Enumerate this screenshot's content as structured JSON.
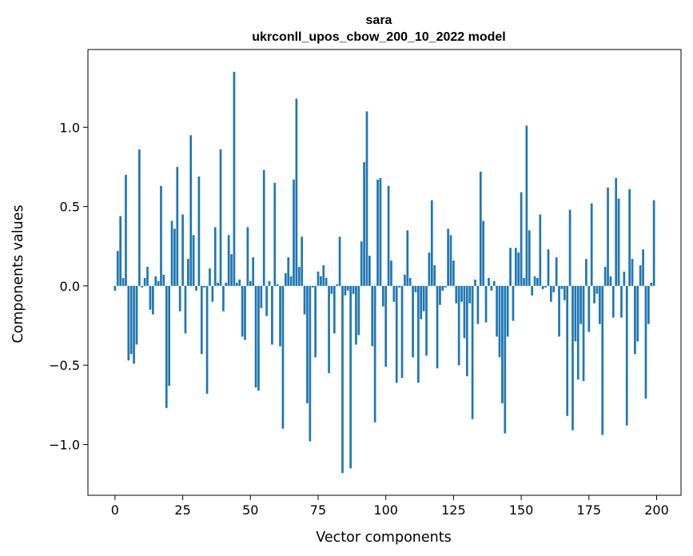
{
  "chart_data": {
    "type": "bar",
    "title": "sara",
    "subtitle": "ukrconll_upos_cbow_200_10_2022 model",
    "xlabel": "Vector components",
    "ylabel": "Components values",
    "xlim": [
      -10,
      209
    ],
    "ylim": [
      -1.32,
      1.49
    ],
    "xticks": [
      0,
      25,
      50,
      75,
      100,
      125,
      150,
      175,
      200
    ],
    "xtick_labels": [
      "0",
      "25",
      "50",
      "75",
      "100",
      "125",
      "150",
      "175",
      "200"
    ],
    "yticks": [
      -1.0,
      -0.5,
      0.0,
      0.5,
      1.0
    ],
    "ytick_labels": [
      "−1.0",
      "−0.5",
      "0.0",
      "0.5",
      "1.0"
    ],
    "grid": false,
    "bar_color": "#1f77b4",
    "x": [
      0,
      1,
      2,
      3,
      4,
      5,
      6,
      7,
      8,
      9,
      10,
      11,
      12,
      13,
      14,
      15,
      16,
      17,
      18,
      19,
      20,
      21,
      22,
      23,
      24,
      25,
      26,
      27,
      28,
      29,
      30,
      31,
      32,
      33,
      34,
      35,
      36,
      37,
      38,
      39,
      40,
      41,
      42,
      43,
      44,
      45,
      46,
      47,
      48,
      49,
      50,
      51,
      52,
      53,
      54,
      55,
      56,
      57,
      58,
      59,
      60,
      61,
      62,
      63,
      64,
      65,
      66,
      67,
      68,
      69,
      70,
      71,
      72,
      73,
      74,
      75,
      76,
      77,
      78,
      79,
      80,
      81,
      82,
      83,
      84,
      85,
      86,
      87,
      88,
      89,
      90,
      91,
      92,
      93,
      94,
      95,
      96,
      97,
      98,
      99,
      100,
      101,
      102,
      103,
      104,
      105,
      106,
      107,
      108,
      109,
      110,
      111,
      112,
      113,
      114,
      115,
      116,
      117,
      118,
      119,
      120,
      121,
      122,
      123,
      124,
      125,
      126,
      127,
      128,
      129,
      130,
      131,
      132,
      133,
      134,
      135,
      136,
      137,
      138,
      139,
      140,
      141,
      142,
      143,
      144,
      145,
      146,
      147,
      148,
      149,
      150,
      151,
      152,
      153,
      154,
      155,
      156,
      157,
      158,
      159,
      160,
      161,
      162,
      163,
      164,
      165,
      166,
      167,
      168,
      169,
      170,
      171,
      172,
      173,
      174,
      175,
      176,
      177,
      178,
      179,
      180,
      181,
      182,
      183,
      184,
      185,
      186,
      187,
      188,
      189,
      190,
      191,
      192,
      193,
      194,
      195,
      196,
      197,
      198,
      199
    ],
    "values": [
      -0.03,
      0.22,
      0.44,
      0.05,
      0.7,
      -0.47,
      -0.43,
      -0.49,
      -0.37,
      0.86,
      -0.01,
      0.05,
      0.12,
      -0.15,
      -0.18,
      0.06,
      0.03,
      0.63,
      0.07,
      -0.77,
      -0.63,
      0.41,
      0.36,
      0.75,
      -0.16,
      0.45,
      -0.3,
      0.17,
      0.95,
      0.32,
      -0.03,
      0.69,
      -0.43,
      -0.01,
      -0.68,
      0.11,
      -0.1,
      0.37,
      0.02,
      0.86,
      -0.16,
      0.02,
      0.32,
      0.2,
      1.35,
      0.02,
      0.04,
      -0.32,
      -0.34,
      0.37,
      0.03,
      0.18,
      -0.64,
      -0.66,
      -0.14,
      0.73,
      -0.19,
      0.03,
      -0.37,
      0.65,
      0.01,
      -0.38,
      -0.9,
      0.08,
      0.18,
      0.06,
      0.67,
      1.18,
      0.12,
      0.31,
      -0.18,
      -0.74,
      -0.98,
      -0.01,
      -0.45,
      0.09,
      0.06,
      0.13,
      0.05,
      -0.55,
      -0.05,
      -0.3,
      0.01,
      0.31,
      -1.18,
      -0.06,
      -0.03,
      -1.15,
      -0.05,
      -0.37,
      -0.31,
      0.28,
      0.78,
      1.1,
      0.19,
      -0.38,
      -0.86,
      0.67,
      0.68,
      -0.13,
      -0.51,
      0.63,
      0.16,
      -0.1,
      -0.61,
      -0.01,
      -0.58,
      0.07,
      0.35,
      0.05,
      -0.45,
      -0.04,
      -0.61,
      -0.21,
      -0.16,
      -0.44,
      0.21,
      0.54,
      0.13,
      -0.52,
      -0.12,
      -0.03,
      -0.01,
      0.36,
      0.32,
      0.16,
      -0.11,
      -0.5,
      -0.1,
      -0.33,
      -0.57,
      -0.11,
      -0.84,
      0.04,
      -0.24,
      0.72,
      0.41,
      -0.23,
      0.05,
      -0.03,
      0.03,
      -0.32,
      -0.45,
      -0.74,
      -0.93,
      -0.32,
      0.24,
      -0.22,
      0.24,
      0.21,
      0.59,
      0.05,
      1.01,
      0.35,
      -0.06,
      0.06,
      0.05,
      0.45,
      -0.02,
      -0.01,
      0.23,
      -0.1,
      -0.04,
      0.18,
      -0.32,
      -0.02,
      -0.09,
      -0.82,
      0.48,
      -0.91,
      -0.35,
      -0.59,
      -0.24,
      -0.6,
      0.17,
      -0.29,
      0.52,
      -0.11,
      -0.05,
      -0.24,
      -0.94,
      0.12,
      0.62,
      0.06,
      -0.2,
      0.68,
      0.55,
      -0.2,
      0.09,
      -0.88,
      0.61,
      0.17,
      -0.43,
      -0.35,
      0.13,
      0.23,
      -0.71,
      -0.24,
      0.02,
      0.54
    ]
  }
}
